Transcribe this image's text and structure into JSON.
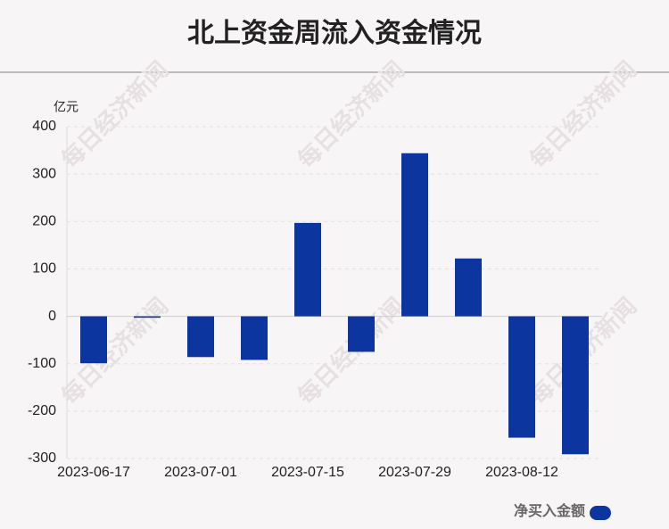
{
  "chart_data": {
    "type": "bar",
    "title": "北上资金周流入资金情况",
    "y_unit": "亿元",
    "watermark": "每日经济新闻",
    "categories": [
      "2023-06-17",
      null,
      "2023-07-01",
      null,
      "2023-07-15",
      null,
      "2023-07-29",
      null,
      "2023-08-12",
      null
    ],
    "series": [
      {
        "name": "净买入金额",
        "color": "#0c35a0",
        "values": [
          -99,
          -3,
          -86,
          -92,
          197,
          -75,
          344,
          122,
          -256,
          -291
        ]
      }
    ],
    "ylim": [
      -300,
      400
    ],
    "yticks": [
      -300,
      -200,
      -100,
      0,
      100,
      200,
      300,
      400
    ],
    "grid": true,
    "legend": "bottom-right"
  }
}
